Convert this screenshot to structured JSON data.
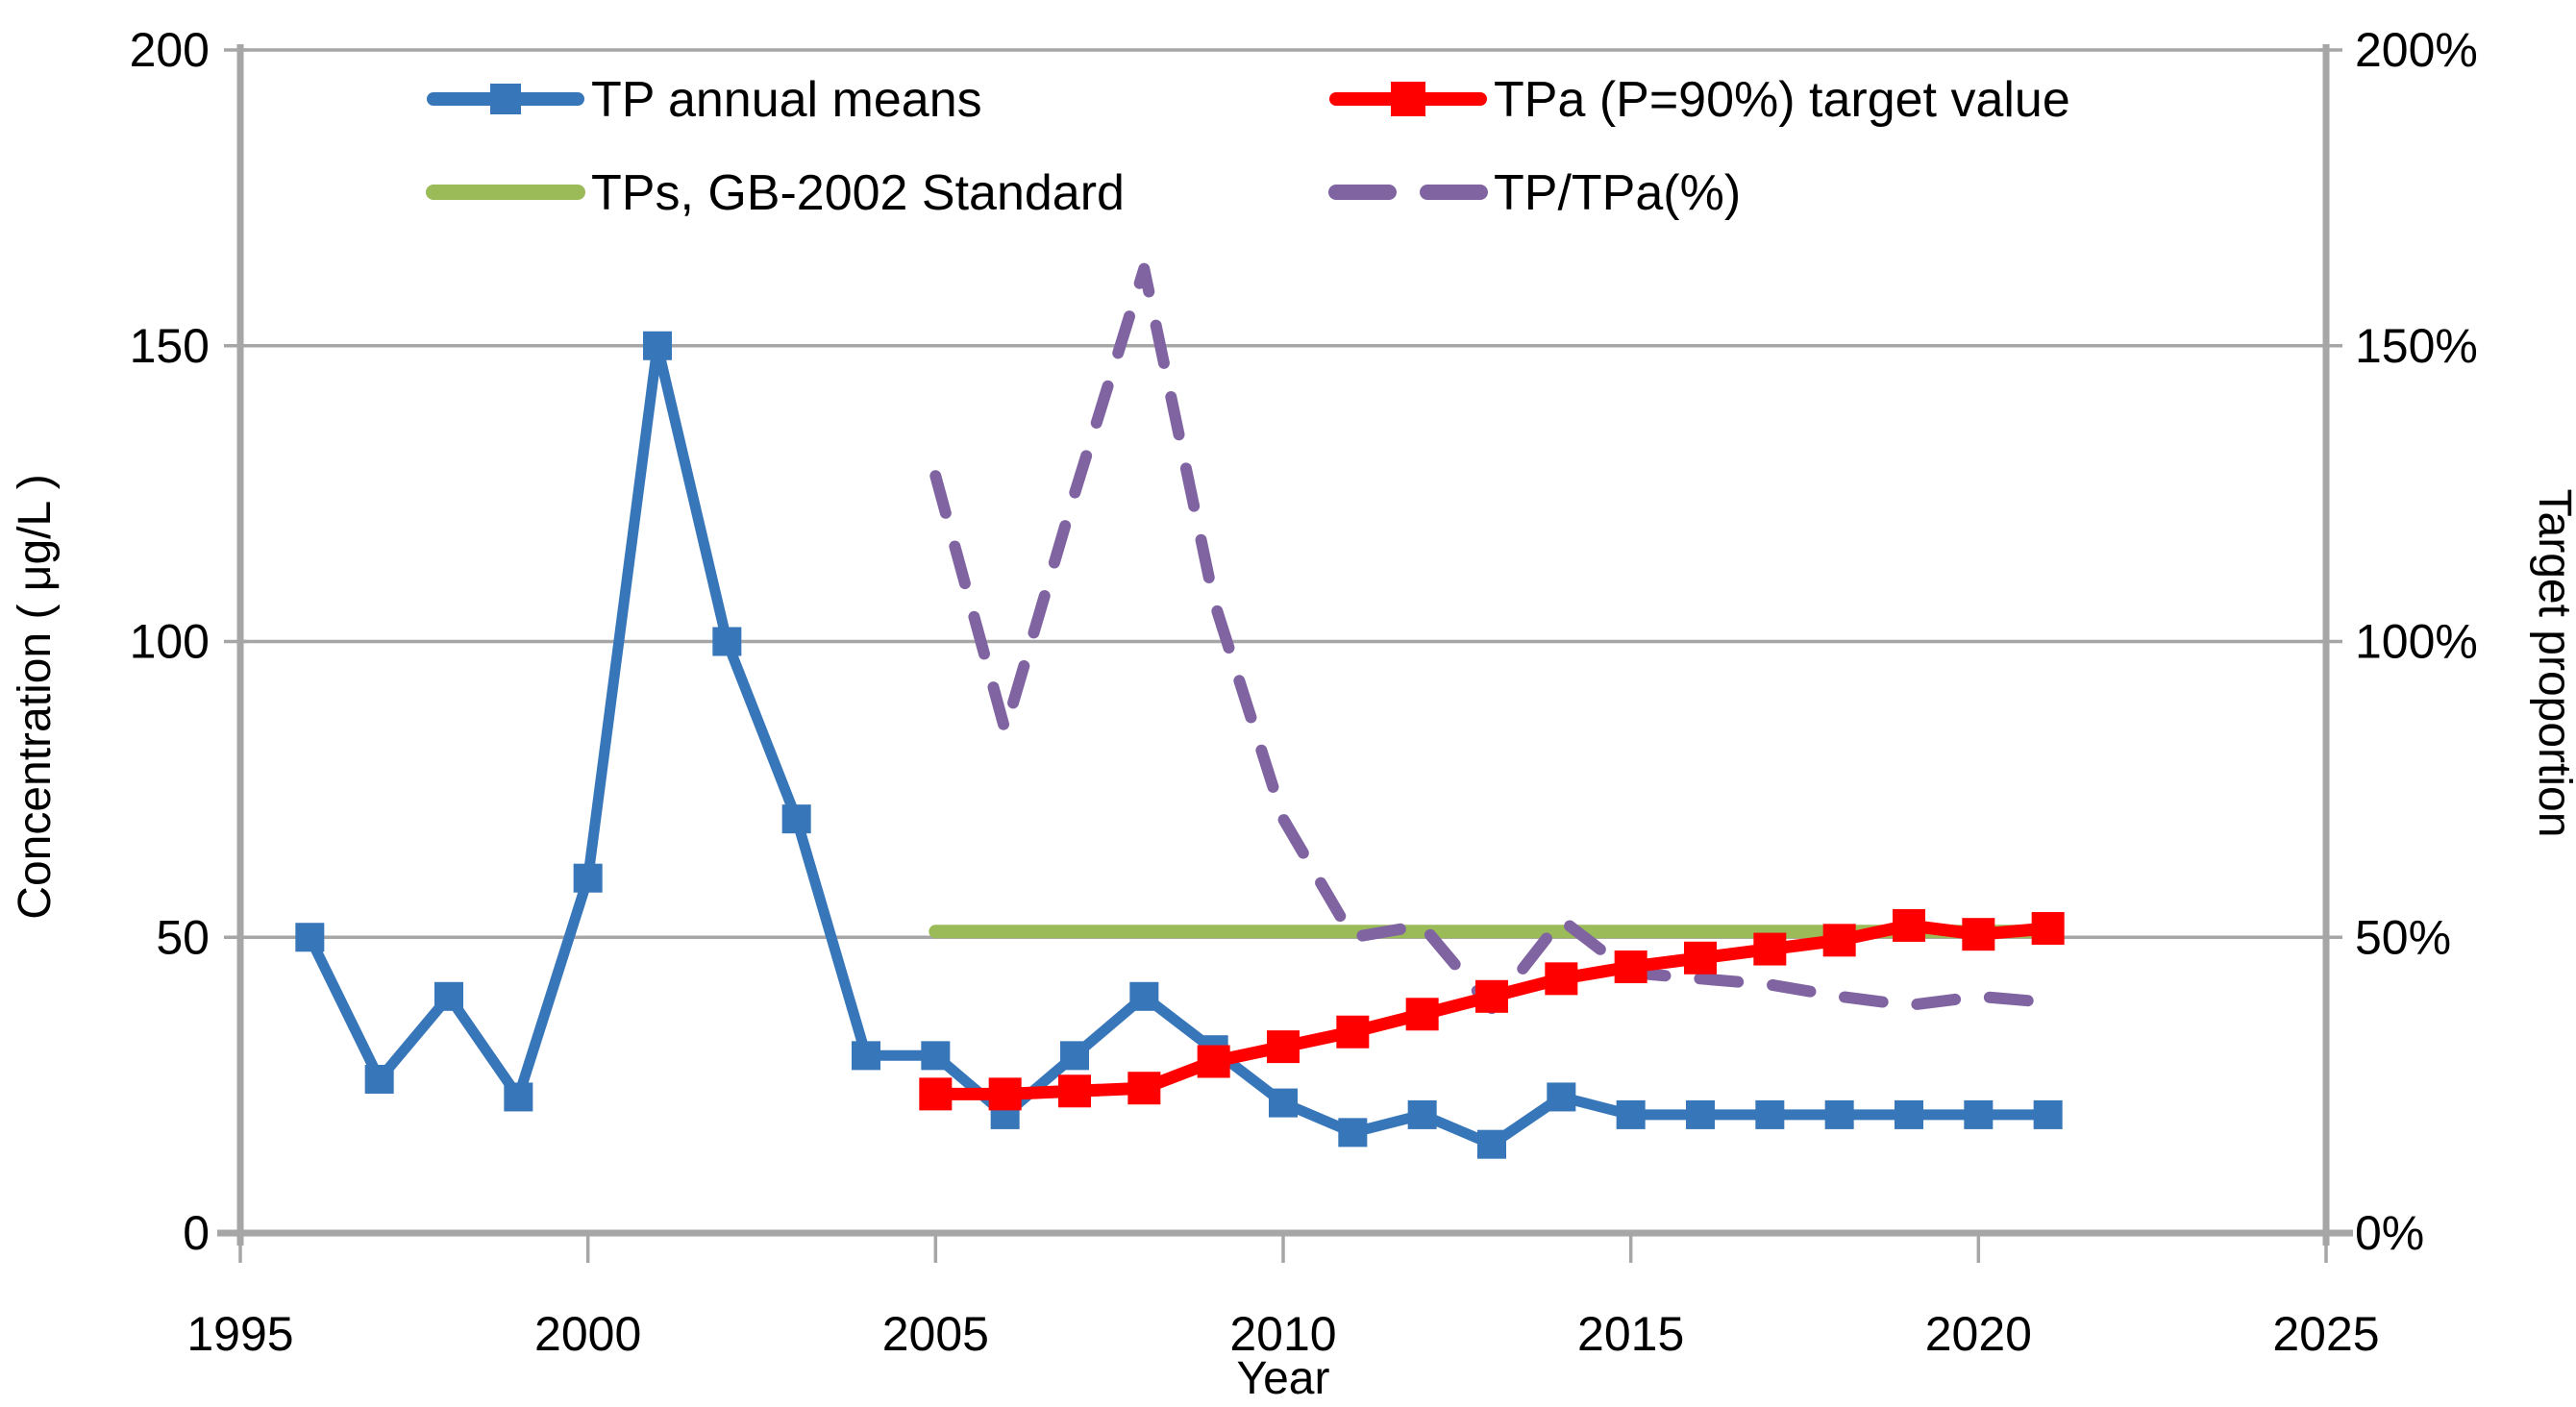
{
  "chart_data": {
    "type": "line",
    "xlabel": "Year",
    "ylabel_left": "Concentration ( μg/L )",
    "ylabel_right": "Target proportion",
    "x_range": [
      1995,
      2025
    ],
    "y_left_range": [
      0,
      200
    ],
    "y_right_range_pct": [
      0,
      200
    ],
    "x_ticks": [
      1995,
      2000,
      2005,
      2010,
      2015,
      2020,
      2025
    ],
    "y_left_ticks": [
      0,
      50,
      100,
      150,
      200
    ],
    "y_left_tick_labels": [
      "0",
      "50",
      "100",
      "150",
      "200"
    ],
    "y_right_tick_labels": [
      "0%",
      "50%",
      "100%",
      "150%",
      "200%"
    ],
    "grid": true,
    "legend_position": "top-inside-two-columns",
    "series": [
      {
        "name": "TP annual means",
        "axis": "left",
        "color": "#3776B9",
        "style": "solid",
        "marker": "square",
        "x": [
          1996,
          1997,
          1998,
          1999,
          2000,
          2001,
          2002,
          2003,
          2004,
          2005,
          2006,
          2007,
          2008,
          2009,
          2010,
          2011,
          2012,
          2013,
          2014,
          2015,
          2016,
          2017,
          2018,
          2019,
          2020,
          2021
        ],
        "values": [
          50,
          26,
          40,
          23,
          60,
          150,
          100,
          70,
          30,
          30,
          20,
          30,
          40,
          31,
          22,
          17,
          20,
          15,
          23,
          20,
          20,
          20,
          20,
          20,
          20,
          20
        ]
      },
      {
        "name": "TPa (P=90%) target value",
        "axis": "left",
        "color": "#FF0000",
        "style": "solid",
        "marker": "square",
        "x": [
          2005,
          2006,
          2007,
          2008,
          2009,
          2010,
          2011,
          2012,
          2013,
          2014,
          2015,
          2016,
          2017,
          2018,
          2019,
          2020,
          2021
        ],
        "values": [
          23.5,
          23.5,
          24,
          24.5,
          29,
          31.5,
          34,
          37,
          40,
          43,
          45,
          46.5,
          48,
          49.5,
          52,
          50.5,
          51.5
        ]
      },
      {
        "name": "TPs, GB-2002 Standard",
        "axis": "left",
        "color": "#9BBB59",
        "style": "solid",
        "marker": "none",
        "x": [
          2005,
          2021
        ],
        "values": [
          50,
          50
        ]
      },
      {
        "name": "TP/TPa(%)",
        "axis": "right",
        "color": "#8064A2",
        "style": "dashed",
        "marker": "none",
        "x": [
          2005,
          2006,
          2007,
          2008,
          2009,
          2010,
          2011,
          2012,
          2013,
          2014,
          2015,
          2016,
          2017,
          2018,
          2019,
          2020,
          2021
        ],
        "values": [
          128,
          85,
          125,
          163,
          107,
          70,
          50,
          52,
          38,
          53,
          44,
          43,
          42,
          40,
          38.5,
          40,
          39
        ]
      }
    ],
    "colors": {
      "tp_blue": "#3776B9",
      "tpa_red": "#FF0000",
      "tps_green": "#9BBB59",
      "ratio_purple": "#8064A2",
      "grid_gray": "#A6A6A6",
      "text_black": "#000000"
    }
  }
}
